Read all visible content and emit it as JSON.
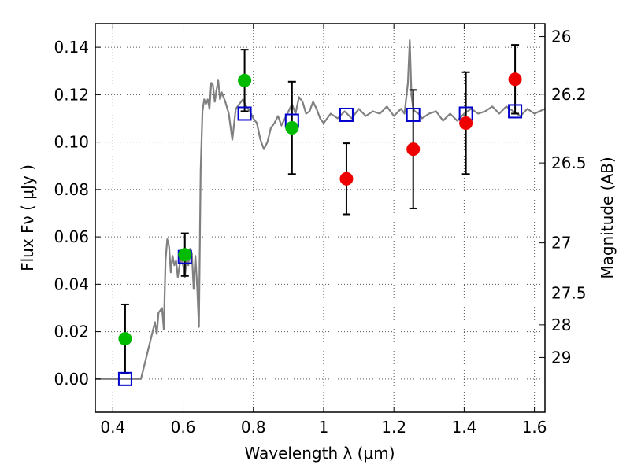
{
  "chart_data": {
    "type": "scatter",
    "xlabel": "Wavelength  λ (μm)",
    "ylabel": "Flux  Fν  ( μJy )",
    "y2label": "Magnitude (AB)",
    "xlim": [
      0.35,
      1.63
    ],
    "ylim": [
      -0.014,
      0.15
    ],
    "grid": true,
    "x_ticks": [
      0.4,
      0.6,
      0.8,
      1.0,
      1.2,
      1.4,
      1.6
    ],
    "x_tick_labels": [
      "0.4",
      "0.6",
      "0.8",
      "1",
      "1.2",
      "1.4",
      "1.6"
    ],
    "y_ticks": [
      0.0,
      0.02,
      0.04,
      0.06,
      0.08,
      0.1,
      0.12,
      0.14
    ],
    "y_tick_labels": [
      "0.00",
      "0.02",
      "0.04",
      "0.06",
      "0.08",
      "0.10",
      "0.12",
      "0.14"
    ],
    "y2_ticks": [
      {
        "label": "26",
        "flux": 0.1445
      },
      {
        "label": "26.2",
        "flux": 0.1202
      },
      {
        "label": "26.5",
        "flux": 0.0912
      },
      {
        "label": "27",
        "flux": 0.0575
      },
      {
        "label": "27.5",
        "flux": 0.0363
      },
      {
        "label": "28",
        "flux": 0.0229
      },
      {
        "label": "29",
        "flux": 0.0091
      }
    ],
    "colors": {
      "spectrum": "#808080",
      "model": "#0000cc",
      "green": "#00bb00",
      "red": "#ee0000",
      "errorbar": "#000000",
      "grid": "#555555"
    },
    "series": [
      {
        "x": [
          0.435,
          0.605,
          0.775,
          0.91
        ],
        "y": [
          0.017,
          0.0525,
          0.126,
          0.106
        ],
        "err": [
          0.0145,
          0.009,
          0.013,
          0.0195
        ]
      },
      {
        "x": [
          1.065,
          1.255,
          1.405,
          1.545
        ],
        "y": [
          0.0845,
          0.097,
          0.108,
          0.1265
        ],
        "err": [
          0.015,
          0.025,
          0.0215,
          0.0145
        ]
      },
      {
        "x": [
          0.435,
          0.605,
          0.775,
          0.91,
          1.065,
          1.255,
          1.405,
          1.545
        ],
        "y": [
          0.0,
          0.0515,
          0.112,
          0.109,
          0.1115,
          0.1115,
          0.112,
          0.113
        ]
      },
      {
        "x": [
          0.35,
          0.48,
          0.5,
          0.52,
          0.525,
          0.53,
          0.54,
          0.545,
          0.55,
          0.555,
          0.56,
          0.565,
          0.57,
          0.575,
          0.58,
          0.585,
          0.59,
          0.595,
          0.6,
          0.605,
          0.61,
          0.615,
          0.62,
          0.625,
          0.63,
          0.635,
          0.64,
          0.645,
          0.65,
          0.655,
          0.66,
          0.665,
          0.67,
          0.675,
          0.68,
          0.685,
          0.69,
          0.695,
          0.7,
          0.705,
          0.71,
          0.72,
          0.73,
          0.74,
          0.75,
          0.76,
          0.77,
          0.78,
          0.79,
          0.8,
          0.81,
          0.82,
          0.83,
          0.84,
          0.85,
          0.86,
          0.87,
          0.88,
          0.89,
          0.9,
          0.91,
          0.92,
          0.93,
          0.94,
          0.95,
          0.96,
          0.97,
          0.98,
          0.99,
          1.0,
          1.02,
          1.04,
          1.06,
          1.08,
          1.1,
          1.12,
          1.14,
          1.16,
          1.18,
          1.2,
          1.22,
          1.23,
          1.24,
          1.245,
          1.25,
          1.255,
          1.26,
          1.27,
          1.28,
          1.3,
          1.32,
          1.34,
          1.36,
          1.38,
          1.4,
          1.42,
          1.44,
          1.46,
          1.48,
          1.5,
          1.52,
          1.54,
          1.56,
          1.58,
          1.6,
          1.63
        ],
        "y": [
          0.0,
          0.0,
          0.012,
          0.024,
          0.019,
          0.028,
          0.03,
          0.021,
          0.05,
          0.059,
          0.056,
          0.045,
          0.052,
          0.048,
          0.05,
          0.043,
          0.048,
          0.051,
          0.048,
          0.043,
          0.051,
          0.048,
          0.055,
          0.053,
          0.038,
          0.052,
          0.039,
          0.022,
          0.088,
          0.113,
          0.118,
          0.116,
          0.118,
          0.114,
          0.125,
          0.124,
          0.117,
          0.122,
          0.126,
          0.118,
          0.121,
          0.117,
          0.112,
          0.101,
          0.114,
          0.116,
          0.118,
          0.115,
          0.113,
          0.11,
          0.108,
          0.101,
          0.097,
          0.1,
          0.106,
          0.108,
          0.111,
          0.107,
          0.11,
          0.113,
          0.116,
          0.112,
          0.119,
          0.117,
          0.112,
          0.113,
          0.117,
          0.114,
          0.11,
          0.108,
          0.112,
          0.11,
          0.113,
          0.11,
          0.114,
          0.111,
          0.113,
          0.112,
          0.115,
          0.111,
          0.114,
          0.112,
          0.125,
          0.143,
          0.12,
          0.114,
          0.113,
          0.112,
          0.11,
          0.112,
          0.113,
          0.109,
          0.112,
          0.109,
          0.112,
          0.114,
          0.112,
          0.113,
          0.115,
          0.112,
          0.115,
          0.113,
          0.111,
          0.114,
          0.112,
          0.114
        ]
      }
    ]
  }
}
